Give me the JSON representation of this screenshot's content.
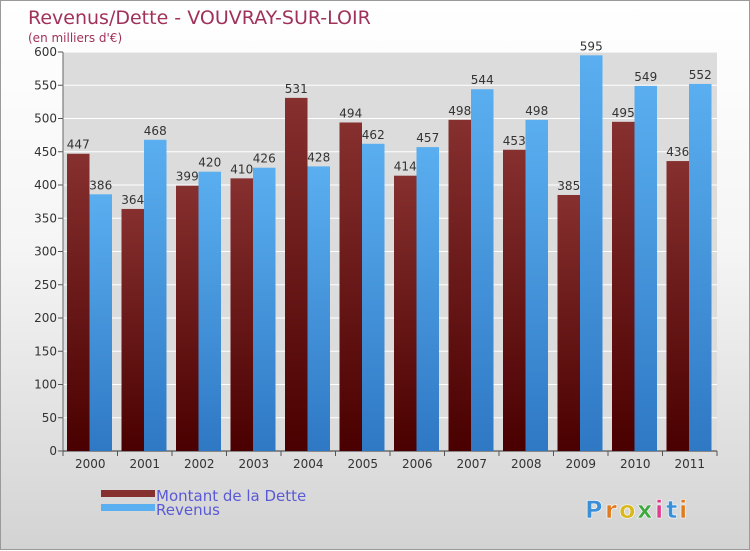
{
  "colors": {
    "dette_top": "#86302f",
    "dette_bottom": "#4a0000",
    "revenus_top": "#5aaff0",
    "revenus_bottom": "#2f78c4",
    "title": "#a0325a",
    "legend_text": "#5a5ad6"
  },
  "chart_data": {
    "type": "bar",
    "title": "Revenus/Dette - VOUVRAY-SUR-LOIR",
    "subtitle": "(en milliers d'€)",
    "categories": [
      "2000",
      "2001",
      "2002",
      "2003",
      "2004",
      "2005",
      "2006",
      "2007",
      "2008",
      "2009",
      "2010",
      "2011"
    ],
    "series": [
      {
        "name": "Montant de la Dette",
        "values": [
          447,
          364,
          399,
          410,
          531,
          494,
          414,
          498,
          453,
          385,
          495,
          436
        ]
      },
      {
        "name": "Revenus",
        "values": [
          386,
          468,
          420,
          426,
          428,
          462,
          457,
          544,
          498,
          595,
          549,
          552
        ]
      }
    ],
    "ylim": [
      0,
      600
    ],
    "yticks": [
      0,
      50,
      100,
      150,
      200,
      250,
      300,
      350,
      400,
      450,
      500,
      550,
      600
    ],
    "grid": true,
    "legend_position": "bottom-left"
  },
  "watermark": "Proxiti"
}
